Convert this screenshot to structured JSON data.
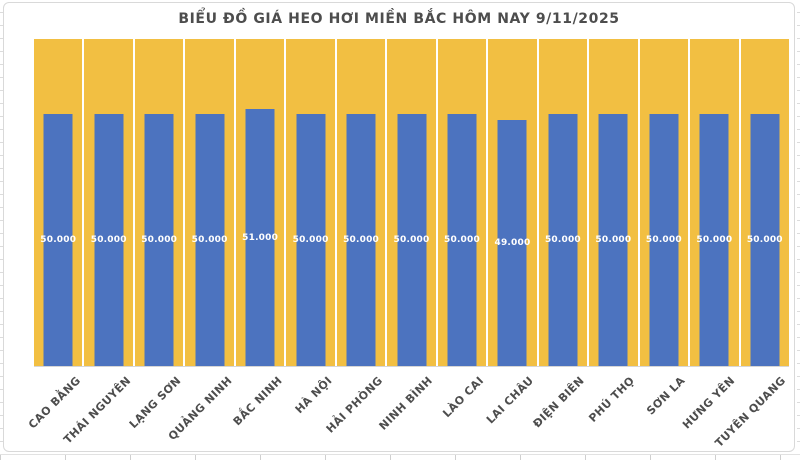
{
  "chart_data": {
    "type": "bar",
    "title": "BIỂU ĐỒ GIÁ HEO HƠI MIỀN BẮC HÔM NAY 9/11/2025",
    "categories": [
      "CAO BẰNG",
      "THÁI NGUYÊN",
      "LẠNG SƠN",
      "QUẢNG NINH",
      "BẮC NINH",
      "HÀ NỘI",
      "HẢI PHÒNG",
      "NINH BÌNH",
      "LÀO CAI",
      "LAI CHÂU",
      "ĐIỆN BIÊN",
      "PHÚ THỌ",
      "SƠN LA",
      "HƯNG YÊN",
      "TUYÊN QUANG"
    ],
    "values": [
      50000,
      50000,
      50000,
      50000,
      51000,
      50000,
      50000,
      50000,
      50000,
      49000,
      50000,
      50000,
      50000,
      50000,
      50000
    ],
    "value_labels": [
      "50.000",
      "50.000",
      "50.000",
      "50.000",
      "51.000",
      "50.000",
      "50.000",
      "50.000",
      "50.000",
      "49.000",
      "50.000",
      "50.000",
      "50.000",
      "50.000",
      "50.000"
    ],
    "xlabel": "",
    "ylabel": "",
    "ylim": [
      0,
      65000
    ],
    "grid": false,
    "legend": "none",
    "bar_color": "#4C73BF",
    "background_column_color": "#F2BF42",
    "value_label_color": "#ffffff",
    "title_color": "#4d4d4d"
  }
}
